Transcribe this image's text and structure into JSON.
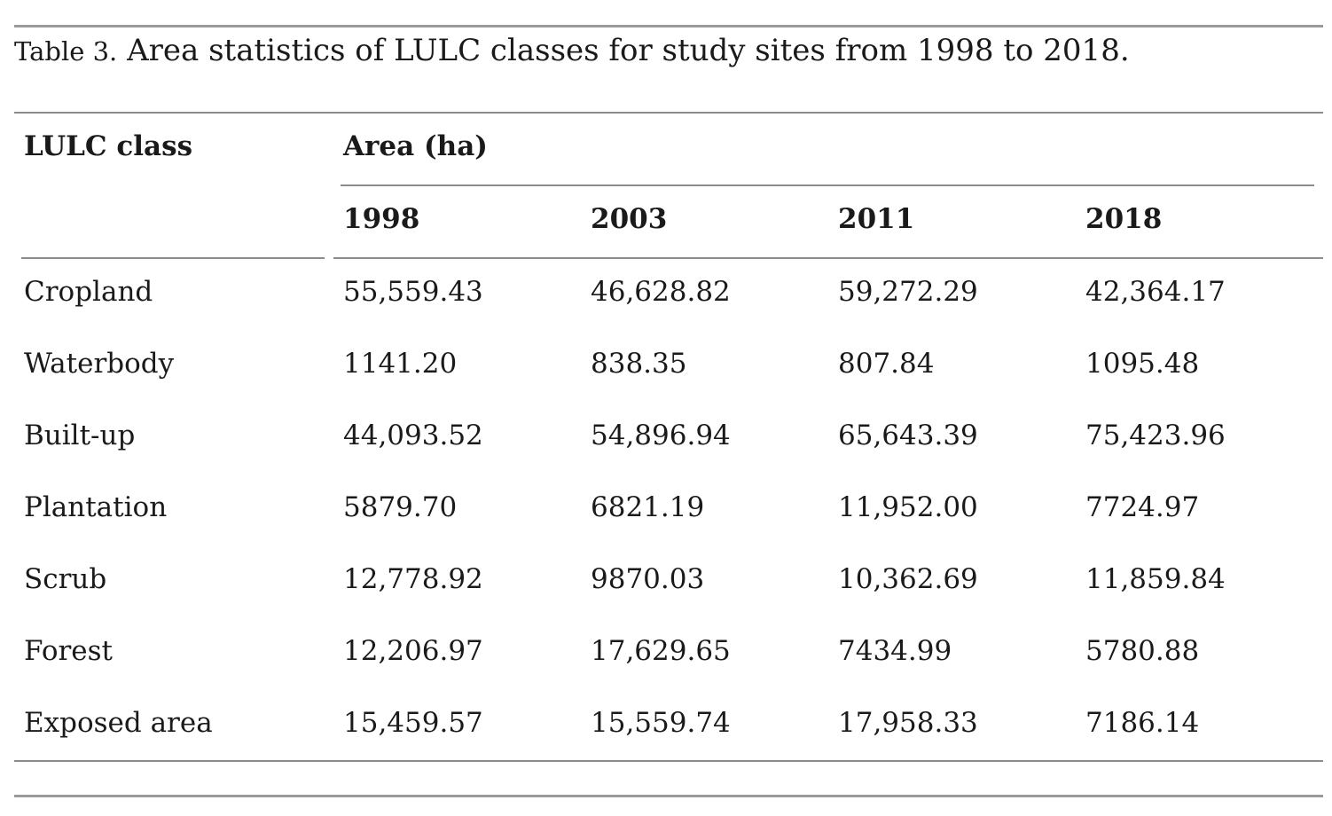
{
  "caption": {
    "label": "Table 3.",
    "text": "Area statistics of LULC classes for study sites from 1998 to 2018."
  },
  "table": {
    "row_header": "LULC class",
    "group_header": "Area (ha)",
    "years": [
      "1998",
      "2003",
      "2011",
      "2018"
    ],
    "rows": [
      {
        "class": "Cropland",
        "values": [
          "55,559.43",
          "46,628.82",
          "59,272.29",
          "42,364.17"
        ]
      },
      {
        "class": "Waterbody",
        "values": [
          "1141.20",
          "838.35",
          "807.84",
          "1095.48"
        ]
      },
      {
        "class": "Built-up",
        "values": [
          "44,093.52",
          "54,896.94",
          "65,643.39",
          "75,423.96"
        ]
      },
      {
        "class": "Plantation",
        "values": [
          "5879.70",
          "6821.19",
          "11,952.00",
          "7724.97"
        ]
      },
      {
        "class": "Scrub",
        "values": [
          "12,778.92",
          "9870.03",
          "10,362.69",
          "11,859.84"
        ]
      },
      {
        "class": "Forest",
        "values": [
          "12,206.97",
          "17,629.65",
          "7434.99",
          "5780.88"
        ]
      },
      {
        "class": "Exposed area",
        "values": [
          "15,459.57",
          "15,559.74",
          "17,958.33",
          "7186.14"
        ]
      }
    ]
  }
}
